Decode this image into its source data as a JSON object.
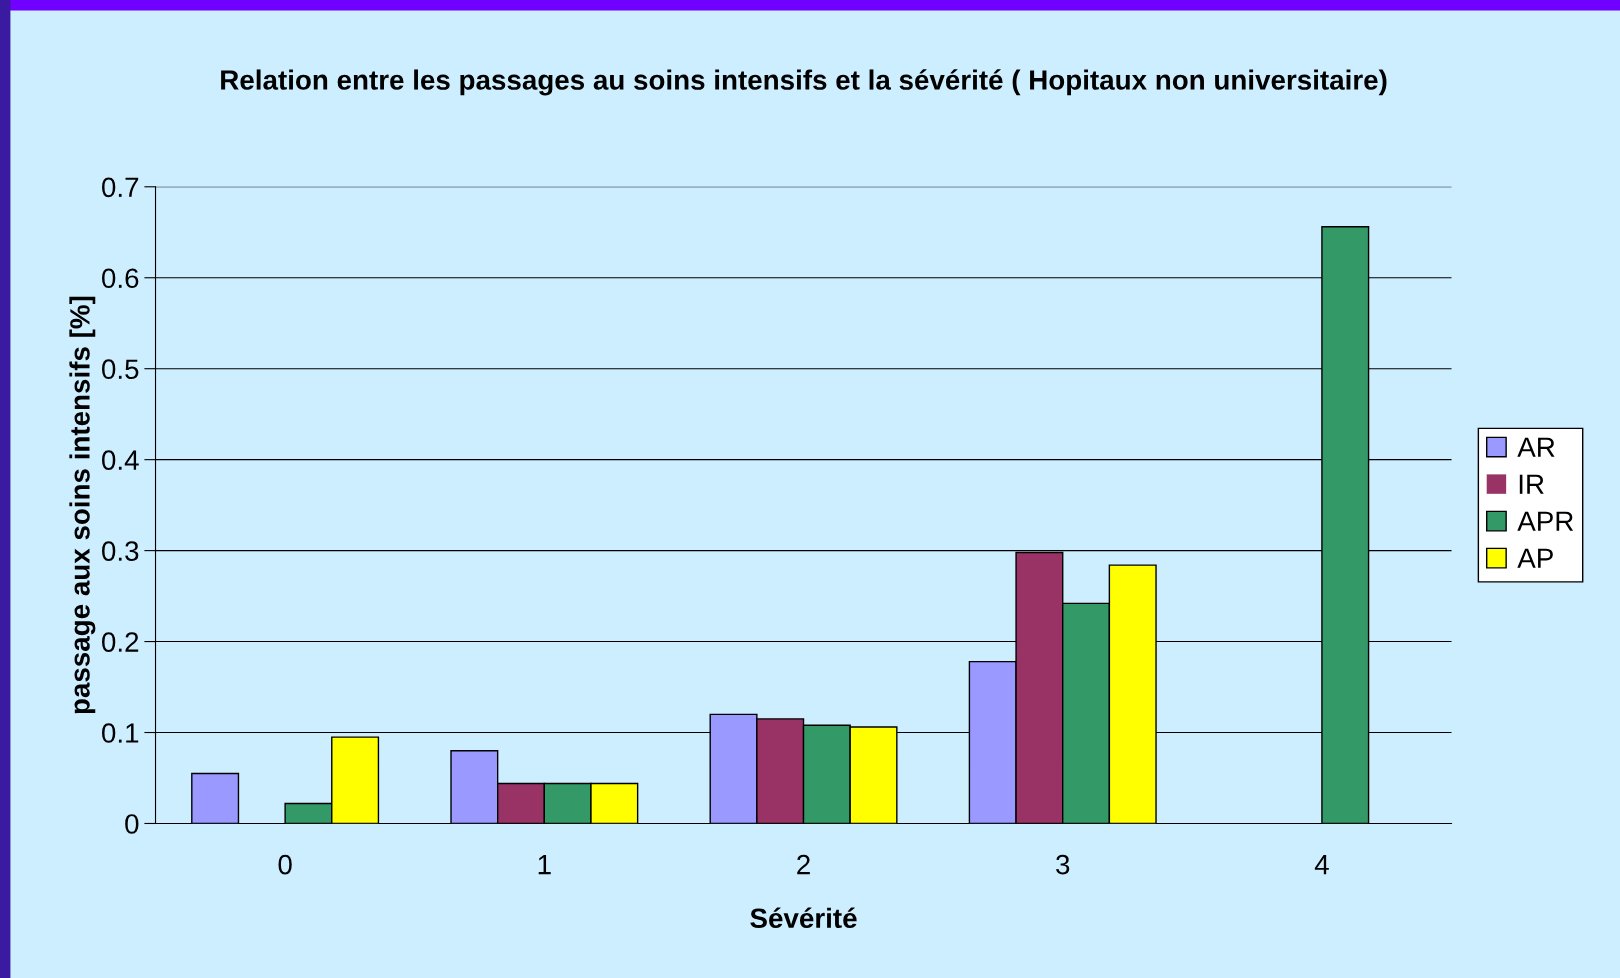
{
  "chart_data": {
    "type": "bar",
    "title": "Relation entre les passages au soins intensifs et la sévérité ( Hopitaux non universitaire)",
    "xlabel": "Sévérité",
    "ylabel": "passage aux soins intensifs [%]",
    "categories": [
      "0",
      "1",
      "2",
      "3",
      "4"
    ],
    "series": [
      {
        "name": "AR",
        "color": "#9999ff",
        "values": [
          0.055,
          0.08,
          0.12,
          0.178,
          0
        ]
      },
      {
        "name": "IR",
        "color": "#993366",
        "values": [
          0,
          0.044,
          0.115,
          0.298,
          0
        ]
      },
      {
        "name": "APR",
        "color": "#339966",
        "values": [
          0.022,
          0.044,
          0.108,
          0.242,
          0.656
        ]
      },
      {
        "name": "AP",
        "color": "#ffff00",
        "values": [
          0.095,
          0.044,
          0.106,
          0.284,
          0
        ]
      }
    ],
    "ylim": [
      0,
      0.7
    ],
    "yticks": [
      0,
      0.1,
      0.2,
      0.3,
      0.4,
      0.5,
      0.6,
      0.7
    ],
    "grid": "y",
    "legend": "right"
  }
}
